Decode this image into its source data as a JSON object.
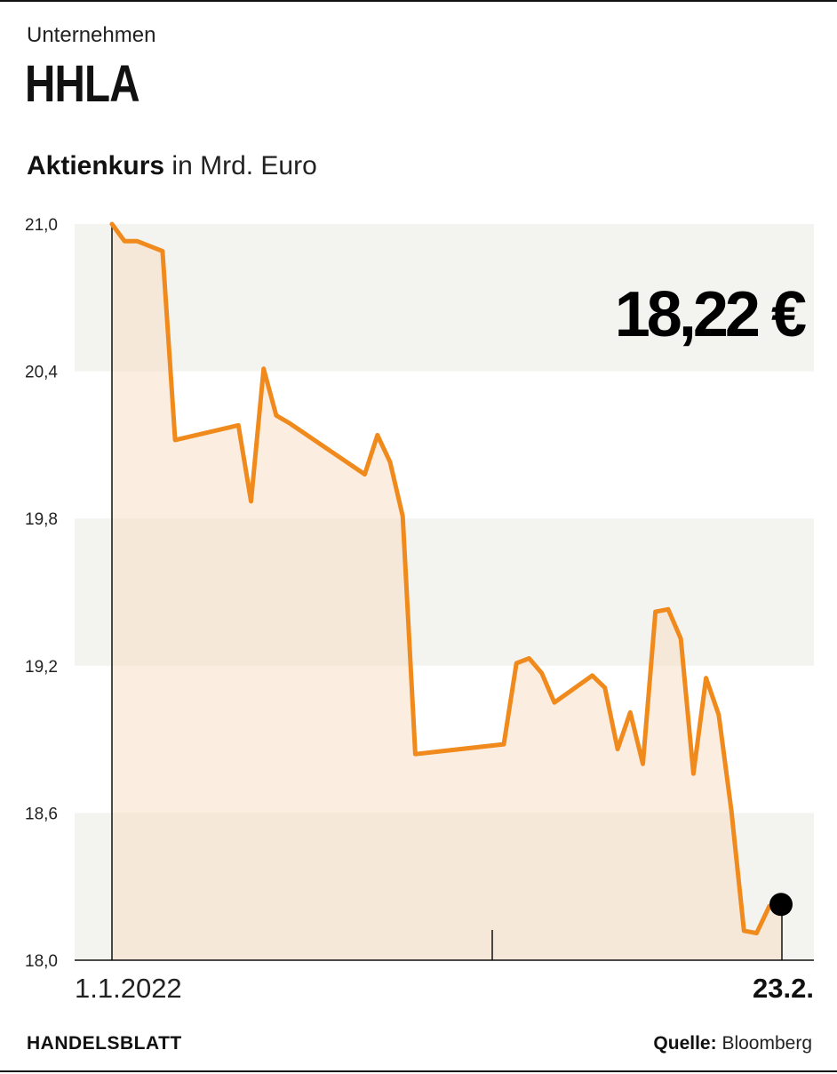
{
  "header": {
    "kicker": "Unternehmen",
    "title": "HHLA",
    "subtitle_bold": "Aktienkurs",
    "subtitle_rest": " in Mrd. Euro"
  },
  "footer": {
    "brand": "HANDELSBLATT",
    "source_label": "Quelle:",
    "source_value": " Bloomberg"
  },
  "colors": {
    "line": "#f08a1c",
    "area": "#f7dfc4",
    "band": "#f3f3ef",
    "text": "#111111"
  },
  "chart_data": {
    "type": "line",
    "title": "",
    "xlabel": "",
    "ylabel": "",
    "ylim": [
      18.0,
      21.0
    ],
    "y_ticks": [
      "21,0",
      "20,4",
      "19,8",
      "19,2",
      "18,6",
      "18,0"
    ],
    "y_tick_values": [
      21.0,
      20.4,
      19.8,
      19.2,
      18.6,
      18.0
    ],
    "x_range": [
      "2022-01-01",
      "2022-02-23"
    ],
    "x_start_label": "1.1.2022",
    "x_end_label": "23.2.",
    "current_value_label": "18,22 €",
    "grid": "alternating horizontal bands",
    "series": [
      {
        "x": [
          "2022-01-01",
          "2022-01-02",
          "2022-01-03",
          "2022-01-05",
          "2022-01-06",
          "2022-01-11",
          "2022-01-12",
          "2022-01-13",
          "2022-01-14",
          "2022-01-15",
          "2022-01-21",
          "2022-01-22",
          "2022-01-23",
          "2022-01-24",
          "2022-01-25",
          "2022-02-01",
          "2022-02-02",
          "2022-02-03",
          "2022-02-04",
          "2022-02-05",
          "2022-02-08",
          "2022-02-09",
          "2022-02-10",
          "2022-02-11",
          "2022-02-12",
          "2022-02-13",
          "2022-02-14",
          "2022-02-15",
          "2022-02-16",
          "2022-02-17",
          "2022-02-18",
          "2022-02-19",
          "2022-02-20",
          "2022-02-21",
          "2022-02-22",
          "2022-02-23"
        ],
        "y": [
          21.0,
          20.93,
          20.93,
          20.89,
          20.12,
          20.18,
          19.87,
          20.41,
          20.22,
          20.19,
          19.98,
          20.14,
          20.03,
          19.81,
          18.84,
          18.88,
          19.21,
          19.23,
          19.17,
          19.05,
          19.16,
          19.11,
          18.86,
          19.01,
          18.8,
          19.42,
          19.43,
          19.31,
          18.76,
          19.15,
          19.0,
          18.61,
          18.12,
          18.11,
          18.22,
          18.22
        ]
      }
    ],
    "last_point": 18.22
  }
}
